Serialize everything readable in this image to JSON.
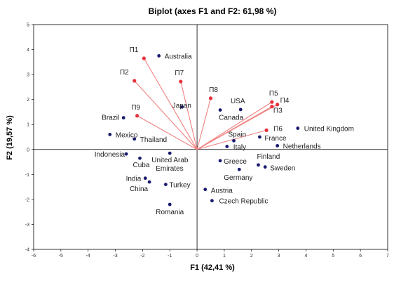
{
  "chart_data": {
    "type": "scatter",
    "title": "Biplot (axes F1 and F2: 61,98 %)",
    "xlabel": "F1 (42,41 %)",
    "ylabel": "F2 (19,57 %)",
    "xlim": [
      -6,
      7
    ],
    "ylim": [
      -4,
      5
    ],
    "xticks": [
      -6,
      -5,
      -4,
      -3,
      -2,
      -1,
      0,
      1,
      2,
      3,
      4,
      5,
      6,
      7
    ],
    "yticks": [
      -4,
      -3,
      -2,
      -1,
      0,
      1,
      2,
      3,
      4,
      5
    ],
    "grid": false,
    "colors": {
      "observations": "#1a1a6e",
      "variables": "#e8323c",
      "vector_lines": "#f08080"
    },
    "observations": [
      {
        "label": "Australia",
        "x": -1.4,
        "y": 3.75
      },
      {
        "label": "USA",
        "x": 1.6,
        "y": 1.6
      },
      {
        "label": "Canada",
        "x": 0.85,
        "y": 1.58
      },
      {
        "label": "Japan",
        "x": -0.55,
        "y": 1.7
      },
      {
        "label": "Brazil",
        "x": -2.7,
        "y": 1.27
      },
      {
        "label": "Mexico",
        "x": -3.2,
        "y": 0.6
      },
      {
        "label": "Thailand",
        "x": -2.3,
        "y": 0.42
      },
      {
        "label": "Indonesia",
        "x": -2.6,
        "y": -0.18
      },
      {
        "label": "Cuba",
        "x": -2.1,
        "y": -0.35
      },
      {
        "label": "United Arab Emirates",
        "x": -1.0,
        "y": -0.15
      },
      {
        "label": "India",
        "x": -1.9,
        "y": -1.15
      },
      {
        "label": "China",
        "x": -1.75,
        "y": -1.3
      },
      {
        "label": "Turkey",
        "x": -1.15,
        "y": -1.4
      },
      {
        "label": "Romania",
        "x": -1.0,
        "y": -2.2
      },
      {
        "label": "Austria",
        "x": 0.3,
        "y": -1.6
      },
      {
        "label": "Czech Republic",
        "x": 0.55,
        "y": -2.05
      },
      {
        "label": "Germany",
        "x": 1.55,
        "y": -0.8
      },
      {
        "label": "Greece",
        "x": 0.85,
        "y": -0.45
      },
      {
        "label": "Finland",
        "x": 2.25,
        "y": -0.62
      },
      {
        "label": "Sweden",
        "x": 2.5,
        "y": -0.7
      },
      {
        "label": "Italy",
        "x": 1.1,
        "y": 0.12
      },
      {
        "label": "Spain",
        "x": 1.35,
        "y": 0.35
      },
      {
        "label": "France",
        "x": 2.3,
        "y": 0.5
      },
      {
        "label": "Netherlands",
        "x": 2.95,
        "y": 0.15
      },
      {
        "label": "United Kingdom",
        "x": 3.7,
        "y": 0.85
      }
    ],
    "variables": [
      {
        "label": "П1",
        "x": -1.95,
        "y": 3.65
      },
      {
        "label": "П2",
        "x": -2.3,
        "y": 2.75
      },
      {
        "label": "П7",
        "x": -0.6,
        "y": 2.72
      },
      {
        "label": "П8",
        "x": 0.5,
        "y": 2.05
      },
      {
        "label": "П9",
        "x": -2.2,
        "y": 1.35
      },
      {
        "label": "П5",
        "x": 2.75,
        "y": 1.9
      },
      {
        "label": "П4",
        "x": 2.95,
        "y": 1.8
      },
      {
        "label": "П3",
        "x": 2.75,
        "y": 1.72
      },
      {
        "label": "П6",
        "x": 2.55,
        "y": 0.77
      }
    ]
  }
}
